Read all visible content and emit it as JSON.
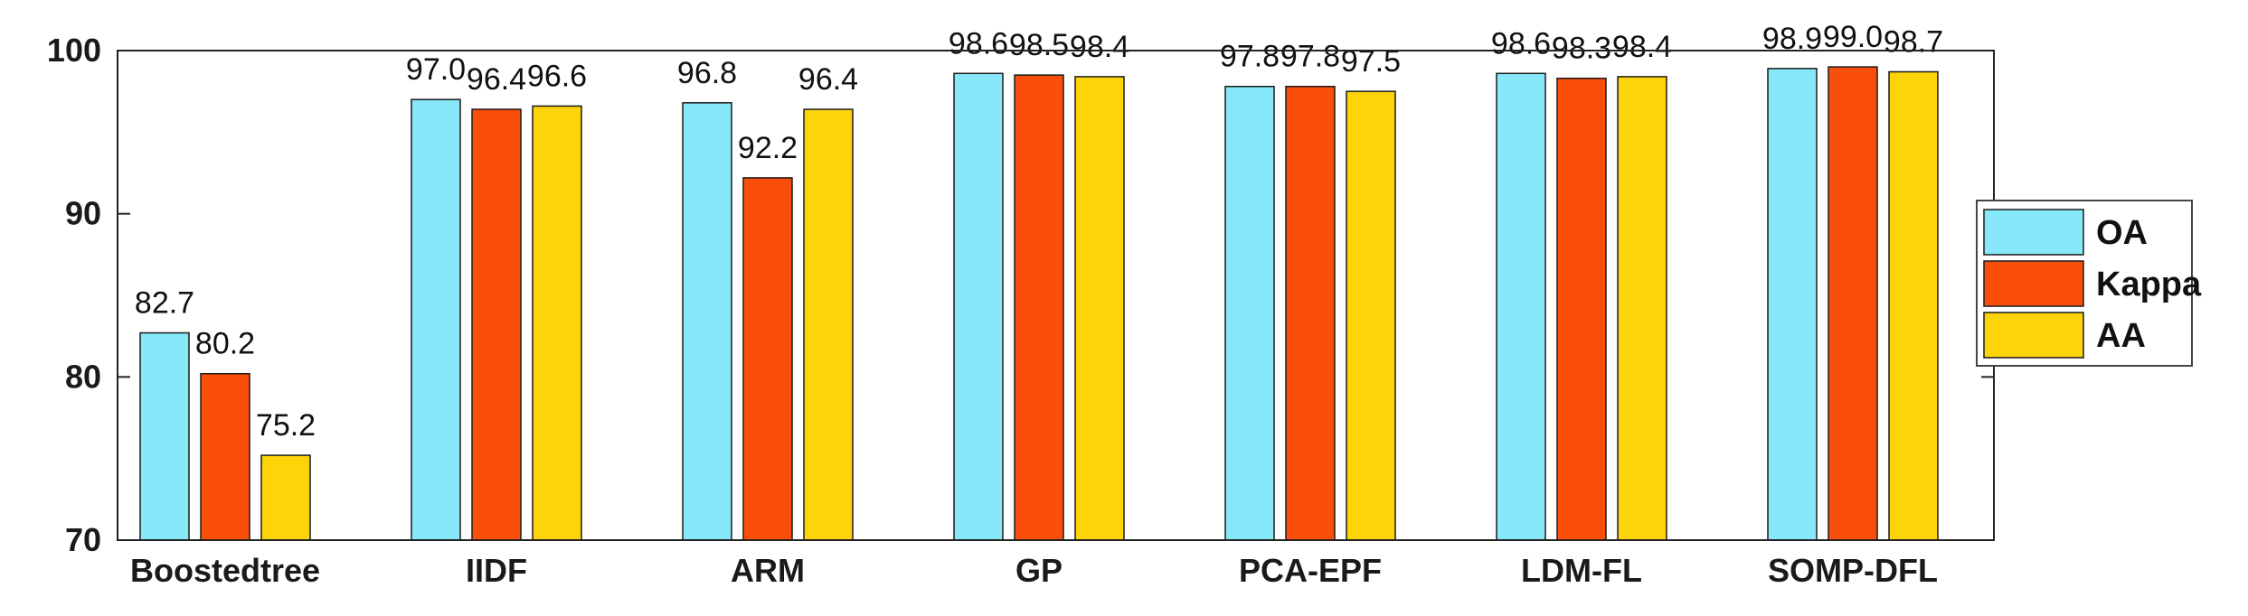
{
  "chart_data": {
    "type": "bar",
    "title": "",
    "xlabel": "",
    "ylabel": "",
    "ylim": [
      70,
      100
    ],
    "yticks": [
      70,
      80,
      90,
      100
    ],
    "grid": false,
    "legend_position": "right",
    "categories": [
      "Boostedtree",
      "IIDF",
      "ARM",
      "GP",
      "PCA-EPF",
      "LDM-FL",
      "SOMP-DFL"
    ],
    "series": [
      {
        "name": "OA",
        "color": "#87E8FA",
        "values": [
          82.7,
          97.0,
          96.8,
          98.6,
          97.8,
          98.6,
          98.9
        ],
        "labels": [
          "82.7",
          "97.0",
          "96.8",
          "98.6",
          "97.8",
          "98.6",
          "98.9"
        ]
      },
      {
        "name": "Kappa",
        "color": "#FA4F0A",
        "values": [
          80.2,
          96.4,
          92.2,
          98.5,
          97.8,
          98.3,
          99.0
        ],
        "labels": [
          "80.2",
          "96.4",
          "92.2",
          "98.5",
          "97.8",
          "98.3",
          "99.0"
        ]
      },
      {
        "name": "AA",
        "color": "#FDD30A",
        "values": [
          75.2,
          96.6,
          96.4,
          98.4,
          97.5,
          98.4,
          98.7
        ],
        "labels": [
          "75.2",
          "96.6",
          "96.4",
          "98.4",
          "97.5",
          "98.4",
          "98.7"
        ]
      }
    ]
  }
}
